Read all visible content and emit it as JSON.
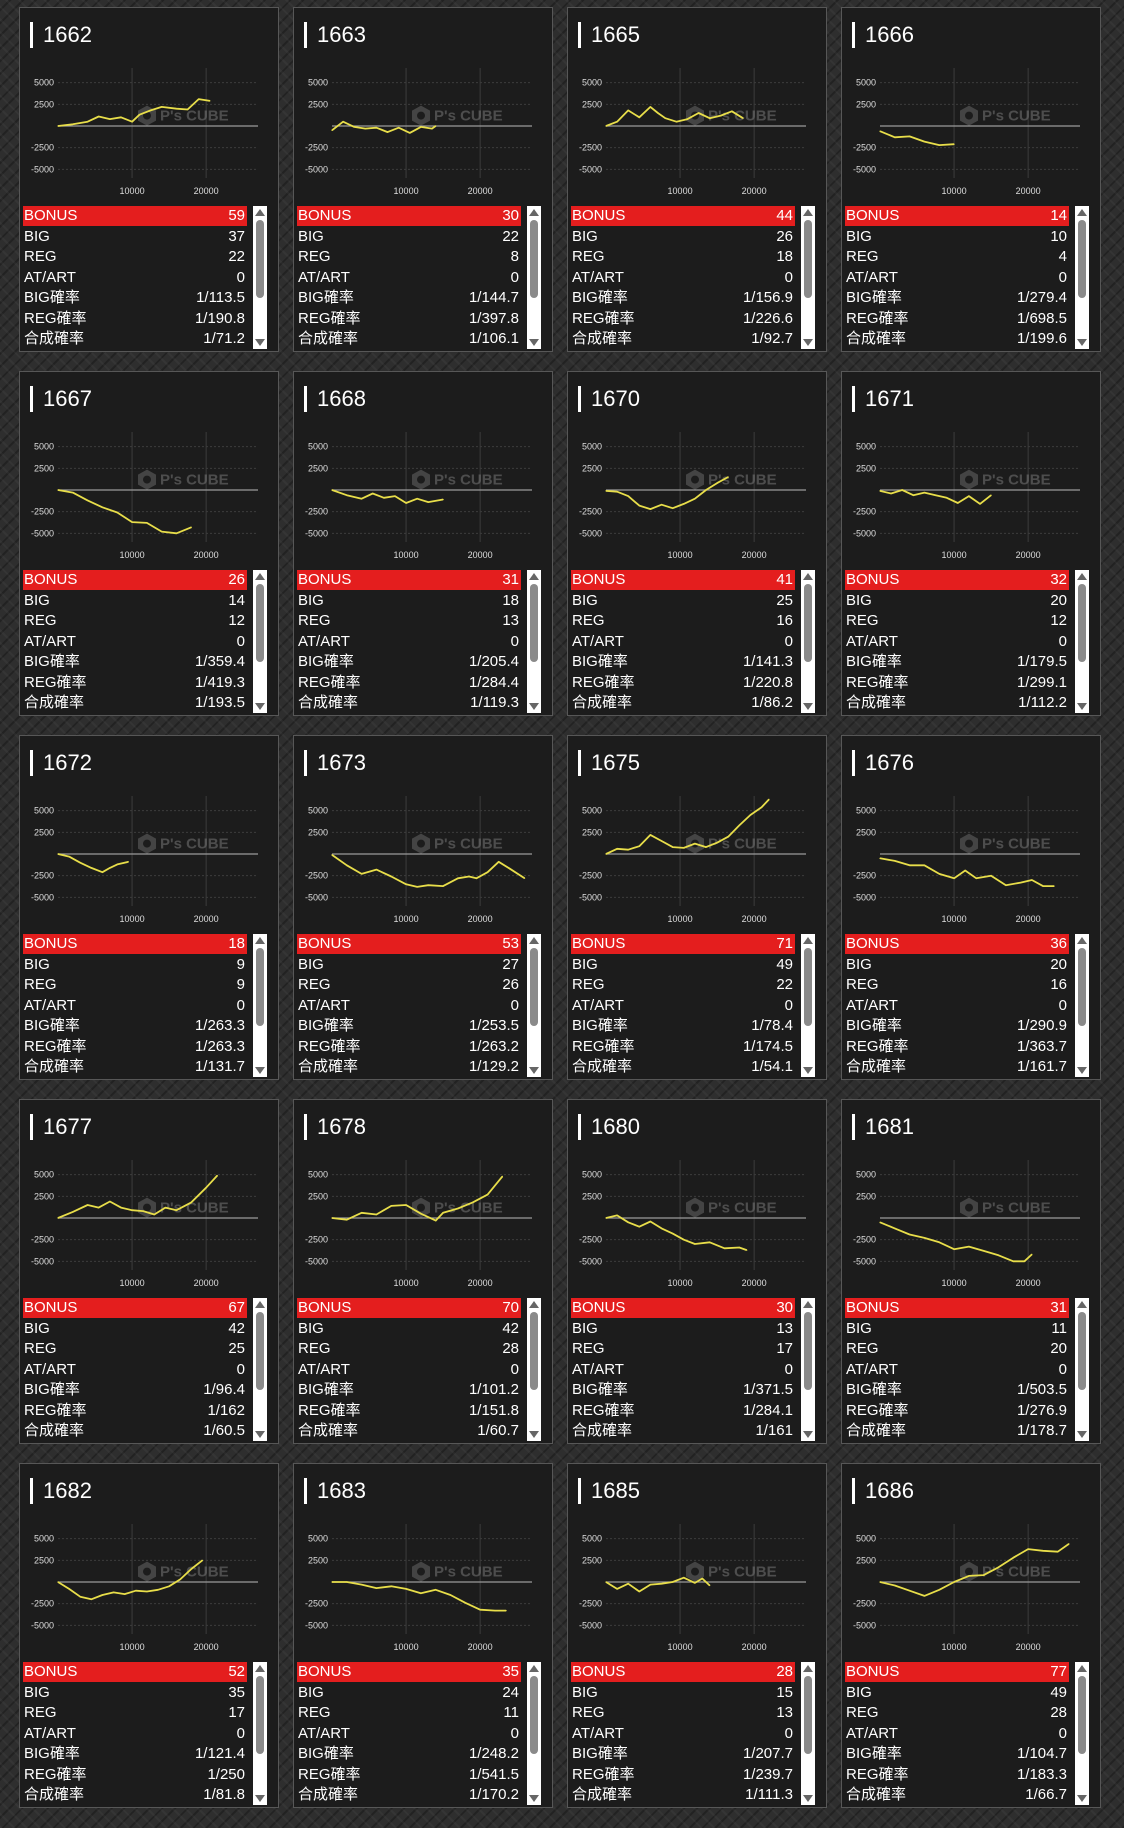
{
  "labels": {
    "bonus": "BONUS",
    "big": "BIG",
    "reg": "REG",
    "atart": "AT/ART",
    "big_rate": "BIG確率",
    "reg_rate": "REG確率",
    "total_rate": "合成確率"
  },
  "watermark": "P's CUBE",
  "colors": {
    "line": "#e8de4a",
    "bonus_bar": "#e41e1e",
    "card_bg": "#1c1c1c"
  },
  "icons": {
    "scroll_up": "triangle-up-icon",
    "scroll_down": "triangle-down-icon",
    "watermark": "ps-cube-logo-icon"
  },
  "chart_axes": {
    "y_ticks": [
      "5000",
      "2500",
      "-2500",
      "-5000"
    ],
    "x_ticks": [
      "10000",
      "20000"
    ],
    "ylim": [
      -6000,
      6000
    ],
    "xlim": [
      0,
      27000
    ]
  },
  "machines": [
    {
      "id": "1662",
      "bonus": "59",
      "big": "37",
      "reg": "22",
      "atart": "0",
      "big_rate": "1/113.5",
      "reg_rate": "1/190.8",
      "total_rate": "1/71.2",
      "chart_data": {
        "type": "line",
        "x": [
          0,
          2000,
          4000,
          5500,
          7000,
          8500,
          10000,
          11000,
          12500,
          14000,
          16000,
          17500,
          19000,
          20500
        ],
        "y": [
          0,
          200,
          500,
          1100,
          800,
          1000,
          500,
          1300,
          1800,
          2200,
          2000,
          1900,
          3100,
          2900
        ]
      }
    },
    {
      "id": "1663",
      "bonus": "30",
      "big": "22",
      "reg": "8",
      "atart": "0",
      "big_rate": "1/144.7",
      "reg_rate": "1/397.8",
      "total_rate": "1/106.1",
      "chart_data": {
        "type": "line",
        "x": [
          0,
          1500,
          3000,
          4500,
          6000,
          7500,
          9000,
          10500,
          12000,
          13500,
          14000
        ],
        "y": [
          -500,
          500,
          -100,
          -300,
          -200,
          -700,
          -200,
          -800,
          -100,
          -300,
          0
        ]
      }
    },
    {
      "id": "1665",
      "bonus": "44",
      "big": "26",
      "reg": "18",
      "atart": "0",
      "big_rate": "1/156.9",
      "reg_rate": "1/226.6",
      "total_rate": "1/92.7",
      "chart_data": {
        "type": "line",
        "x": [
          0,
          1500,
          3000,
          4500,
          6000,
          7000,
          8000,
          9500,
          11000,
          12500,
          14000,
          15500,
          17000,
          18500
        ],
        "y": [
          0,
          500,
          1800,
          1000,
          2200,
          1500,
          900,
          500,
          800,
          1500,
          900,
          1200,
          1700,
          900
        ]
      }
    },
    {
      "id": "1666",
      "bonus": "14",
      "big": "10",
      "reg": "4",
      "atart": "0",
      "big_rate": "1/279.4",
      "reg_rate": "1/698.5",
      "total_rate": "1/199.6",
      "chart_data": {
        "type": "line",
        "x": [
          0,
          2000,
          4000,
          6000,
          8000,
          10000
        ],
        "y": [
          -600,
          -1300,
          -1200,
          -1800,
          -2200,
          -2100
        ]
      }
    },
    {
      "id": "1667",
      "bonus": "26",
      "big": "14",
      "reg": "12",
      "atart": "0",
      "big_rate": "1/359.4",
      "reg_rate": "1/419.3",
      "total_rate": "1/193.5",
      "chart_data": {
        "type": "line",
        "x": [
          0,
          2000,
          4000,
          6000,
          8000,
          10000,
          12000,
          14000,
          16000,
          18000
        ],
        "y": [
          0,
          -300,
          -1200,
          -2000,
          -2600,
          -3700,
          -3800,
          -4800,
          -5000,
          -4300
        ]
      }
    },
    {
      "id": "1668",
      "bonus": "31",
      "big": "18",
      "reg": "13",
      "atart": "0",
      "big_rate": "1/205.4",
      "reg_rate": "1/284.4",
      "total_rate": "1/119.3",
      "chart_data": {
        "type": "line",
        "x": [
          0,
          2000,
          4000,
          5500,
          7000,
          8500,
          10000,
          11500,
          13000,
          15000
        ],
        "y": [
          0,
          -600,
          -1000,
          -400,
          -900,
          -700,
          -1500,
          -1000,
          -1400,
          -1100
        ]
      }
    },
    {
      "id": "1670",
      "bonus": "41",
      "big": "25",
      "reg": "16",
      "atart": "0",
      "big_rate": "1/141.3",
      "reg_rate": "1/220.8",
      "total_rate": "1/86.2",
      "chart_data": {
        "type": "line",
        "x": [
          0,
          1500,
          3000,
          4500,
          6000,
          7500,
          9000,
          10500,
          12000,
          13500,
          15000,
          16500
        ],
        "y": [
          -100,
          -200,
          -700,
          -1800,
          -2200,
          -1700,
          -2100,
          -1600,
          -1000,
          0,
          800,
          1500
        ]
      }
    },
    {
      "id": "1671",
      "bonus": "32",
      "big": "20",
      "reg": "12",
      "atart": "0",
      "big_rate": "1/179.5",
      "reg_rate": "1/299.1",
      "total_rate": "1/112.2",
      "chart_data": {
        "type": "line",
        "x": [
          0,
          1500,
          3000,
          4500,
          6000,
          7500,
          9000,
          10500,
          12000,
          13500,
          15000
        ],
        "y": [
          -100,
          -400,
          0,
          -600,
          -300,
          -600,
          -900,
          -1500,
          -700,
          -1600,
          -600
        ]
      }
    },
    {
      "id": "1672",
      "bonus": "18",
      "big": "9",
      "reg": "9",
      "atart": "0",
      "big_rate": "1/263.3",
      "reg_rate": "1/263.3",
      "total_rate": "1/131.7",
      "chart_data": {
        "type": "line",
        "x": [
          0,
          1500,
          3000,
          4500,
          6000,
          7000,
          8000,
          9500
        ],
        "y": [
          0,
          -300,
          -1000,
          -1600,
          -2100,
          -1600,
          -1200,
          -900
        ]
      }
    },
    {
      "id": "1673",
      "bonus": "53",
      "big": "27",
      "reg": "26",
      "atart": "0",
      "big_rate": "1/253.5",
      "reg_rate": "1/263.2",
      "total_rate": "1/129.2",
      "chart_data": {
        "type": "line",
        "x": [
          0,
          2000,
          4000,
          6000,
          8000,
          10000,
          11500,
          13000,
          15000,
          17000,
          18500,
          19500,
          21000,
          22500,
          24000,
          26000
        ],
        "y": [
          -100,
          -1300,
          -2300,
          -1800,
          -2600,
          -3500,
          -3800,
          -3600,
          -3700,
          -2800,
          -2600,
          -2800,
          -2100,
          -900,
          -1700,
          -2800
        ]
      }
    },
    {
      "id": "1675",
      "bonus": "71",
      "big": "49",
      "reg": "22",
      "atart": "0",
      "big_rate": "1/78.4",
      "reg_rate": "1/174.5",
      "total_rate": "1/54.1",
      "chart_data": {
        "type": "line",
        "x": [
          0,
          1500,
          3000,
          4500,
          6000,
          7500,
          9000,
          10500,
          12000,
          13500,
          15000,
          16500,
          18000,
          19500,
          21000,
          22000
        ],
        "y": [
          0,
          600,
          500,
          900,
          2200,
          1500,
          800,
          700,
          1200,
          800,
          1300,
          2000,
          3300,
          4500,
          5400,
          6300
        ]
      }
    },
    {
      "id": "1676",
      "bonus": "36",
      "big": "20",
      "reg": "16",
      "atart": "0",
      "big_rate": "1/290.9",
      "reg_rate": "1/363.7",
      "total_rate": "1/161.7",
      "chart_data": {
        "type": "line",
        "x": [
          0,
          2000,
          4000,
          6000,
          8000,
          10000,
          11500,
          13000,
          15000,
          17000,
          19000,
          20500,
          22000,
          23500
        ],
        "y": [
          -500,
          -800,
          -1300,
          -1300,
          -2300,
          -2800,
          -1900,
          -2800,
          -2500,
          -3600,
          -3300,
          -3000,
          -3700,
          -3700
        ]
      }
    },
    {
      "id": "1677",
      "bonus": "67",
      "big": "42",
      "reg": "25",
      "atart": "0",
      "big_rate": "1/96.4",
      "reg_rate": "1/162",
      "total_rate": "1/60.5",
      "chart_data": {
        "type": "line",
        "x": [
          0,
          2000,
          4000,
          5500,
          7000,
          8500,
          10000,
          11500,
          13000,
          14500,
          16000,
          18000,
          20000,
          21500
        ],
        "y": [
          0,
          700,
          1500,
          1200,
          1900,
          1200,
          900,
          800,
          400,
          1200,
          900,
          1800,
          3500,
          4900
        ]
      }
    },
    {
      "id": "1678",
      "bonus": "70",
      "big": "42",
      "reg": "28",
      "atart": "0",
      "big_rate": "1/101.2",
      "reg_rate": "1/151.8",
      "total_rate": "1/60.7",
      "chart_data": {
        "type": "line",
        "x": [
          0,
          2000,
          4000,
          6000,
          8000,
          10000,
          12000,
          14000,
          15000,
          17000,
          19000,
          21000,
          23000
        ],
        "y": [
          0,
          -200,
          600,
          400,
          1400,
          1500,
          500,
          -300,
          600,
          1100,
          1800,
          2700,
          4800
        ]
      }
    },
    {
      "id": "1680",
      "bonus": "30",
      "big": "13",
      "reg": "17",
      "atart": "0",
      "big_rate": "1/371.5",
      "reg_rate": "1/284.1",
      "total_rate": "1/161",
      "chart_data": {
        "type": "line",
        "x": [
          0,
          1500,
          3000,
          4500,
          6000,
          7500,
          9000,
          10500,
          12000,
          14000,
          16000,
          18000,
          19000
        ],
        "y": [
          0,
          300,
          -500,
          -1000,
          -400,
          -1200,
          -1800,
          -2500,
          -3000,
          -2800,
          -3500,
          -3400,
          -3700
        ]
      }
    },
    {
      "id": "1681",
      "bonus": "31",
      "big": "11",
      "reg": "20",
      "atart": "0",
      "big_rate": "1/503.5",
      "reg_rate": "1/276.9",
      "total_rate": "1/178.7",
      "chart_data": {
        "type": "line",
        "x": [
          0,
          2000,
          4000,
          6000,
          8000,
          10000,
          12000,
          14000,
          16000,
          18000,
          19500,
          20500
        ],
        "y": [
          -500,
          -1200,
          -1900,
          -2300,
          -2800,
          -3600,
          -3300,
          -3800,
          -4300,
          -5000,
          -5000,
          -4200
        ]
      }
    },
    {
      "id": "1682",
      "bonus": "52",
      "big": "35",
      "reg": "17",
      "atart": "0",
      "big_rate": "1/121.4",
      "reg_rate": "1/250",
      "total_rate": "1/81.8",
      "chart_data": {
        "type": "line",
        "x": [
          0,
          1500,
          3000,
          4500,
          6000,
          7500,
          9000,
          10500,
          12000,
          13500,
          15000,
          16500,
          18000,
          19500
        ],
        "y": [
          0,
          -800,
          -1700,
          -2000,
          -1500,
          -1200,
          -1400,
          -1000,
          -1100,
          -900,
          -500,
          300,
          1500,
          2500
        ]
      }
    },
    {
      "id": "1683",
      "bonus": "35",
      "big": "24",
      "reg": "11",
      "atart": "0",
      "big_rate": "1/248.2",
      "reg_rate": "1/541.5",
      "total_rate": "1/170.2",
      "chart_data": {
        "type": "line",
        "x": [
          0,
          2000,
          4000,
          6000,
          8000,
          10000,
          12000,
          14000,
          16000,
          18000,
          20000,
          22000,
          23500
        ],
        "y": [
          0,
          0,
          -300,
          -700,
          -500,
          -800,
          -1300,
          -900,
          -1500,
          -2400,
          -3200,
          -3300,
          -3300
        ]
      }
    },
    {
      "id": "1685",
      "bonus": "28",
      "big": "15",
      "reg": "13",
      "atart": "0",
      "big_rate": "1/207.7",
      "reg_rate": "1/239.7",
      "total_rate": "1/111.3",
      "chart_data": {
        "type": "line",
        "x": [
          0,
          1500,
          3000,
          4500,
          6000,
          7500,
          9000,
          10500,
          12000,
          13000,
          14000
        ],
        "y": [
          0,
          -800,
          -200,
          -1100,
          -300,
          -200,
          0,
          500,
          -100,
          400,
          -400
        ]
      }
    },
    {
      "id": "1686",
      "bonus": "77",
      "big": "49",
      "reg": "28",
      "atart": "0",
      "big_rate": "1/104.7",
      "reg_rate": "1/183.3",
      "total_rate": "1/66.7",
      "chart_data": {
        "type": "line",
        "x": [
          0,
          2000,
          4000,
          6000,
          8000,
          10000,
          12000,
          14000,
          16000,
          18000,
          20000,
          22000,
          24000,
          25500
        ],
        "y": [
          0,
          -400,
          -1000,
          -1600,
          -900,
          0,
          700,
          800,
          1700,
          2800,
          3800,
          3600,
          3500,
          4400
        ]
      }
    }
  ]
}
